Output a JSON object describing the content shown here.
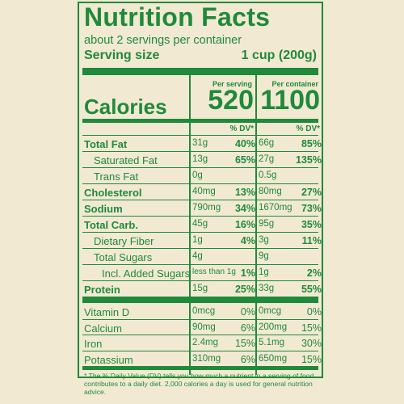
{
  "label": {
    "title": "Nutrition Facts",
    "servings": "about 2 servings per container",
    "serving_size_label": "Serving size",
    "serving_size_value": "1 cup (200g)",
    "col1_header": "Per serving",
    "col2_header": "Per container",
    "calories_label": "Calories",
    "calories_serving": "520",
    "calories_container": "1100",
    "dv_header": "% DV*",
    "footnote": "* The % Daily Value (DV) tells you how much a nutrient in a serving of food contributes to a daily diet. 2,000 calories a day is used for general nutrition advice."
  },
  "nutrients": [
    {
      "name": "Total Fat",
      "bold": true,
      "indent": 0,
      "s_amt": "31g",
      "s_dv": "40%",
      "c_amt": "66g",
      "c_dv": "85%"
    },
    {
      "name": "Saturated Fat",
      "bold": false,
      "indent": 1,
      "s_amt": "13g",
      "s_dv": "65%",
      "c_amt": "27g",
      "c_dv": "135%"
    },
    {
      "name": "Trans Fat",
      "bold": false,
      "indent": 1,
      "s_amt": "0g",
      "s_dv": "",
      "c_amt": "0.5g",
      "c_dv": ""
    },
    {
      "name": "Cholesterol",
      "bold": true,
      "indent": 0,
      "s_amt": "40mg",
      "s_dv": "13%",
      "c_amt": "80mg",
      "c_dv": "27%"
    },
    {
      "name": "Sodium",
      "bold": true,
      "indent": 0,
      "s_amt": "790mg",
      "s_dv": "34%",
      "c_amt": "1670mg",
      "c_dv": "73%"
    },
    {
      "name": "Total Carb.",
      "bold": true,
      "indent": 0,
      "s_amt": "45g",
      "s_dv": "16%",
      "c_amt": "95g",
      "c_dv": "35%"
    },
    {
      "name": "Dietary Fiber",
      "bold": false,
      "indent": 1,
      "s_amt": "1g",
      "s_dv": "4%",
      "c_amt": "3g",
      "c_dv": "11%"
    },
    {
      "name": "Total Sugars",
      "bold": false,
      "indent": 1,
      "s_amt": "4g",
      "s_dv": "",
      "c_amt": "9g",
      "c_dv": ""
    },
    {
      "name": "Incl. Added Sugars",
      "bold": false,
      "indent": 2,
      "s_amt": "less than 1g",
      "s_dv": "1%",
      "c_amt": "1g",
      "c_dv": "2%"
    },
    {
      "name": "Protein",
      "bold": true,
      "indent": 0,
      "s_amt": "15g",
      "s_dv": "25%",
      "c_amt": "33g",
      "c_dv": "55%"
    }
  ],
  "vitamins": [
    {
      "name": "Vitamin D",
      "s_amt": "0mcg",
      "s_dv": "0%",
      "c_amt": "0mcg",
      "c_dv": "0%"
    },
    {
      "name": "Calcium",
      "s_amt": "90mg",
      "s_dv": "6%",
      "c_amt": "200mg",
      "c_dv": "15%"
    },
    {
      "name": "Iron",
      "s_amt": "2.4mg",
      "s_dv": "15%",
      "c_amt": "5.1mg",
      "c_dv": "30%"
    },
    {
      "name": "Potassium",
      "s_amt": "310mg",
      "s_dv": "6%",
      "c_amt": "650mg",
      "c_dv": "15%"
    }
  ]
}
